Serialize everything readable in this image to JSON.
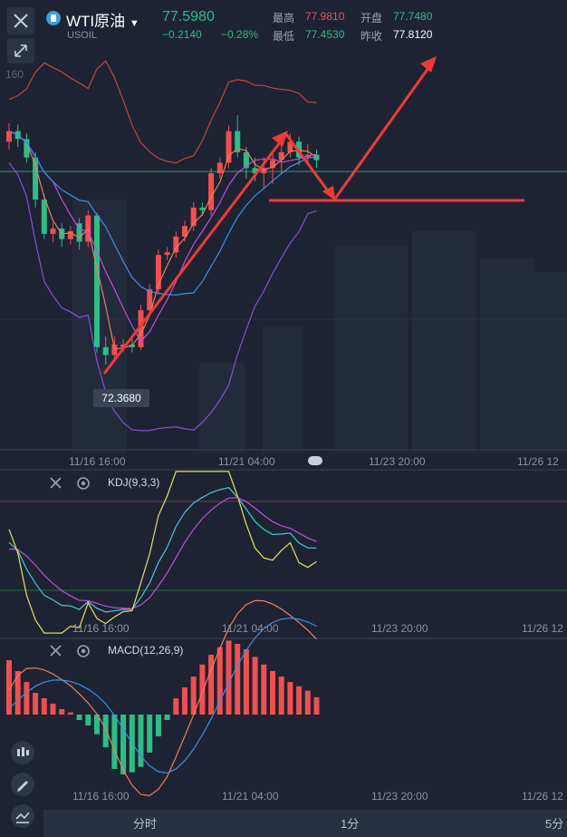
{
  "header": {
    "symbol_name": "WTI原油",
    "symbol_code": "USOIL",
    "price": "77.5980",
    "change": "−0.2140",
    "change_pct": "−0.28%",
    "high_label": "最高",
    "high_value": "77.9810",
    "low_label": "最低",
    "low_value": "77.4530",
    "open_label": "开盘",
    "open_value": "77.7480",
    "prev_label": "昨收",
    "prev_value": "77.8120"
  },
  "main_chart": {
    "partial_axis_label": "160",
    "low_marker": "72.3680",
    "time_ticks": [
      "11/16 16:00",
      "11/21 04:00",
      "11/23 20:00",
      "11/26 12"
    ]
  },
  "kdj": {
    "label": "KDJ(9,3,3)",
    "time_ticks": [
      "11/16 16:00",
      "11/21 04:00",
      "11/23 20:00",
      "11/26 12"
    ]
  },
  "macd": {
    "label": "MACD(12,26,9)",
    "time_ticks": [
      "11/16 16:00",
      "11/21 04:00",
      "11/23 20:00",
      "11/26 12"
    ]
  },
  "timeframes": {
    "items": [
      "分时",
      "1分",
      "5分"
    ]
  },
  "colors": {
    "up": "#f0504f",
    "down": "#2ebd85",
    "ma1": "#f07c5f",
    "ma2": "#c14fd8",
    "ma3": "#3d8ee8",
    "boll_upper": "#c4493a",
    "boll_lower": "#8c4fd8",
    "annotation": "#ee3a3a"
  },
  "chart_data": {
    "type": "candlestick",
    "candles": [
      {
        "o": 76.6,
        "c": 76.8,
        "h": 76.95,
        "l": 76.45
      },
      {
        "o": 76.8,
        "c": 76.65,
        "h": 76.92,
        "l": 76.5
      },
      {
        "o": 76.65,
        "c": 76.3,
        "h": 76.75,
        "l": 76.2
      },
      {
        "o": 76.3,
        "c": 75.5,
        "h": 76.4,
        "l": 75.35
      },
      {
        "o": 75.5,
        "c": 74.85,
        "h": 75.6,
        "l": 74.75
      },
      {
        "o": 74.85,
        "c": 74.95,
        "h": 75.05,
        "l": 74.7
      },
      {
        "o": 74.95,
        "c": 74.75,
        "h": 75.05,
        "l": 74.6
      },
      {
        "o": 74.75,
        "c": 74.9,
        "h": 75.0,
        "l": 74.65
      },
      {
        "o": 75.05,
        "c": 74.7,
        "h": 75.15,
        "l": 74.55
      },
      {
        "o": 74.7,
        "c": 75.2,
        "h": 75.3,
        "l": 74.6
      },
      {
        "o": 75.2,
        "c": 72.7,
        "h": 75.25,
        "l": 72.6
      },
      {
        "o": 72.7,
        "c": 72.55,
        "h": 72.9,
        "l": 72.37
      },
      {
        "o": 72.55,
        "c": 72.75,
        "h": 72.9,
        "l": 72.45
      },
      {
        "o": 72.7,
        "c": 72.75,
        "h": 72.85,
        "l": 72.6
      },
      {
        "o": 72.75,
        "c": 72.7,
        "h": 72.85,
        "l": 72.6
      },
      {
        "o": 72.7,
        "c": 73.4,
        "h": 73.5,
        "l": 72.65
      },
      {
        "o": 73.4,
        "c": 73.8,
        "h": 73.9,
        "l": 73.3
      },
      {
        "o": 73.8,
        "c": 74.45,
        "h": 74.55,
        "l": 73.7
      },
      {
        "o": 74.45,
        "c": 74.5,
        "h": 74.6,
        "l": 74.35
      },
      {
        "o": 74.5,
        "c": 74.8,
        "h": 74.9,
        "l": 74.4
      },
      {
        "o": 74.8,
        "c": 75.0,
        "h": 75.1,
        "l": 74.7
      },
      {
        "o": 75.0,
        "c": 75.35,
        "h": 75.45,
        "l": 74.9
      },
      {
        "o": 75.35,
        "c": 75.3,
        "h": 75.45,
        "l": 75.2
      },
      {
        "o": 75.3,
        "c": 76.0,
        "h": 76.1,
        "l": 75.2
      },
      {
        "o": 76.0,
        "c": 76.2,
        "h": 76.3,
        "l": 75.9
      },
      {
        "o": 76.2,
        "c": 76.8,
        "h": 76.9,
        "l": 76.1
      },
      {
        "o": 76.8,
        "c": 76.4,
        "h": 77.1,
        "l": 76.3
      },
      {
        "o": 76.4,
        "c": 76.1,
        "h": 76.5,
        "l": 75.9
      },
      {
        "o": 76.1,
        "c": 76.0,
        "h": 76.3,
        "l": 75.85
      },
      {
        "o": 76.0,
        "c": 76.1,
        "h": 76.3,
        "l": 75.7
      },
      {
        "o": 76.1,
        "c": 76.25,
        "h": 76.4,
        "l": 75.8
      },
      {
        "o": 76.25,
        "c": 76.4,
        "h": 76.55,
        "l": 76.0
      },
      {
        "o": 76.4,
        "c": 76.6,
        "h": 76.75,
        "l": 76.3
      },
      {
        "o": 76.6,
        "c": 76.3,
        "h": 76.7,
        "l": 76.15
      },
      {
        "o": 76.3,
        "c": 76.35,
        "h": 76.55,
        "l": 76.2
      },
      {
        "o": 76.35,
        "c": 76.25,
        "h": 76.45,
        "l": 76.1
      }
    ],
    "ylim": [
      71.2,
      78.6
    ],
    "macd_hist": [
      5,
      4,
      3,
      2,
      1.5,
      1,
      0.5,
      0.2,
      -0.5,
      -1,
      -1.8,
      -3,
      -5,
      -5.5,
      -5.3,
      -4.8,
      -3.5,
      -2,
      -0.5,
      1.5,
      2.5,
      3.5,
      4.6,
      5.5,
      6.2,
      6.8,
      6.5,
      6,
      5.3,
      4.6,
      4,
      3.5,
      3,
      2.6,
      2.2,
      1.6
    ]
  }
}
